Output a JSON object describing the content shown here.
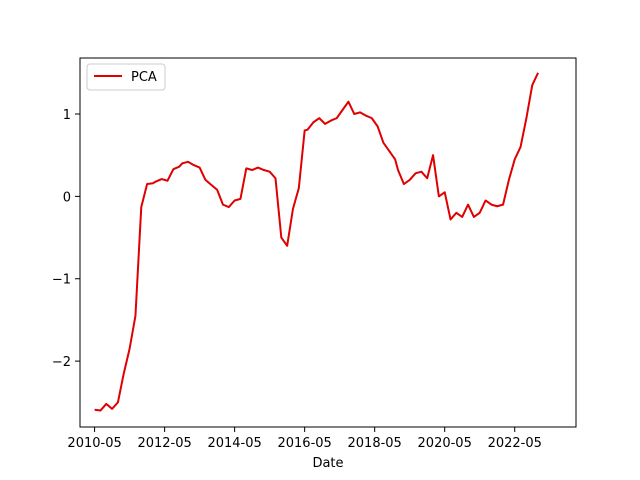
{
  "chart_data": {
    "type": "line",
    "title": "",
    "xlabel": "Date",
    "ylabel": "",
    "x_ticks": [
      "2010-05",
      "2012-05",
      "2014-05",
      "2016-05",
      "2018-05",
      "2020-05",
      "2022-05"
    ],
    "y_ticks": [
      "−2",
      "−1",
      "0",
      "1"
    ],
    "y_tick_values": [
      -2,
      -1,
      0,
      1
    ],
    "xlim": [
      "2009-12",
      "2024-02"
    ],
    "ylim": [
      -2.8,
      1.68
    ],
    "grid": false,
    "legend_position": "top-left",
    "series": [
      {
        "name": "PCA",
        "color": "#e00000",
        "x": [
          "2010-05",
          "2010-07",
          "2010-09",
          "2010-11",
          "2011-01",
          "2011-03",
          "2011-05",
          "2011-07",
          "2011-09",
          "2011-11",
          "2012-01",
          "2012-02",
          "2012-04",
          "2012-06",
          "2012-08",
          "2012-10",
          "2012-11",
          "2013-01",
          "2013-03",
          "2013-05",
          "2013-07",
          "2013-09",
          "2013-11",
          "2014-01",
          "2014-03",
          "2014-05",
          "2014-07",
          "2014-09",
          "2014-11",
          "2015-01",
          "2015-03",
          "2015-05",
          "2015-07",
          "2015-09",
          "2015-11",
          "2016-01",
          "2016-03",
          "2016-05",
          "2016-06",
          "2016-08",
          "2016-10",
          "2016-12",
          "2017-02",
          "2017-04",
          "2017-06",
          "2017-08",
          "2017-10",
          "2017-12",
          "2018-02",
          "2018-04",
          "2018-06",
          "2018-08",
          "2018-10",
          "2018-12",
          "2019-01",
          "2019-03",
          "2019-05",
          "2019-07",
          "2019-09",
          "2019-11",
          "2020-01",
          "2020-03",
          "2020-05",
          "2020-07",
          "2020-09",
          "2020-11",
          "2021-01",
          "2021-03",
          "2021-05",
          "2021-07",
          "2021-09",
          "2021-11",
          "2022-01",
          "2022-03",
          "2022-05",
          "2022-07",
          "2022-09",
          "2022-11",
          "2023-01"
        ],
        "y": [
          -2.59,
          -2.6,
          -2.52,
          -2.58,
          -2.5,
          -2.15,
          -1.85,
          -1.45,
          -0.13,
          0.15,
          0.16,
          0.18,
          0.21,
          0.19,
          0.33,
          0.36,
          0.4,
          0.42,
          0.38,
          0.35,
          0.2,
          0.14,
          0.08,
          -0.1,
          -0.13,
          -0.05,
          -0.03,
          0.34,
          0.32,
          0.35,
          0.32,
          0.3,
          0.22,
          -0.5,
          -0.6,
          -0.15,
          0.1,
          0.8,
          0.81,
          0.9,
          0.95,
          0.88,
          0.92,
          0.95,
          1.05,
          1.15,
          1.0,
          1.02,
          0.98,
          0.95,
          0.85,
          0.65,
          0.55,
          0.45,
          0.32,
          0.15,
          0.2,
          0.28,
          0.3,
          0.22,
          0.5,
          0.0,
          0.05,
          -0.28,
          -0.2,
          -0.25,
          -0.1,
          -0.25,
          -0.2,
          -0.05,
          -0.1,
          -0.12,
          -0.1,
          0.2,
          0.45,
          0.6,
          0.95,
          1.35,
          1.5
        ]
      }
    ]
  }
}
